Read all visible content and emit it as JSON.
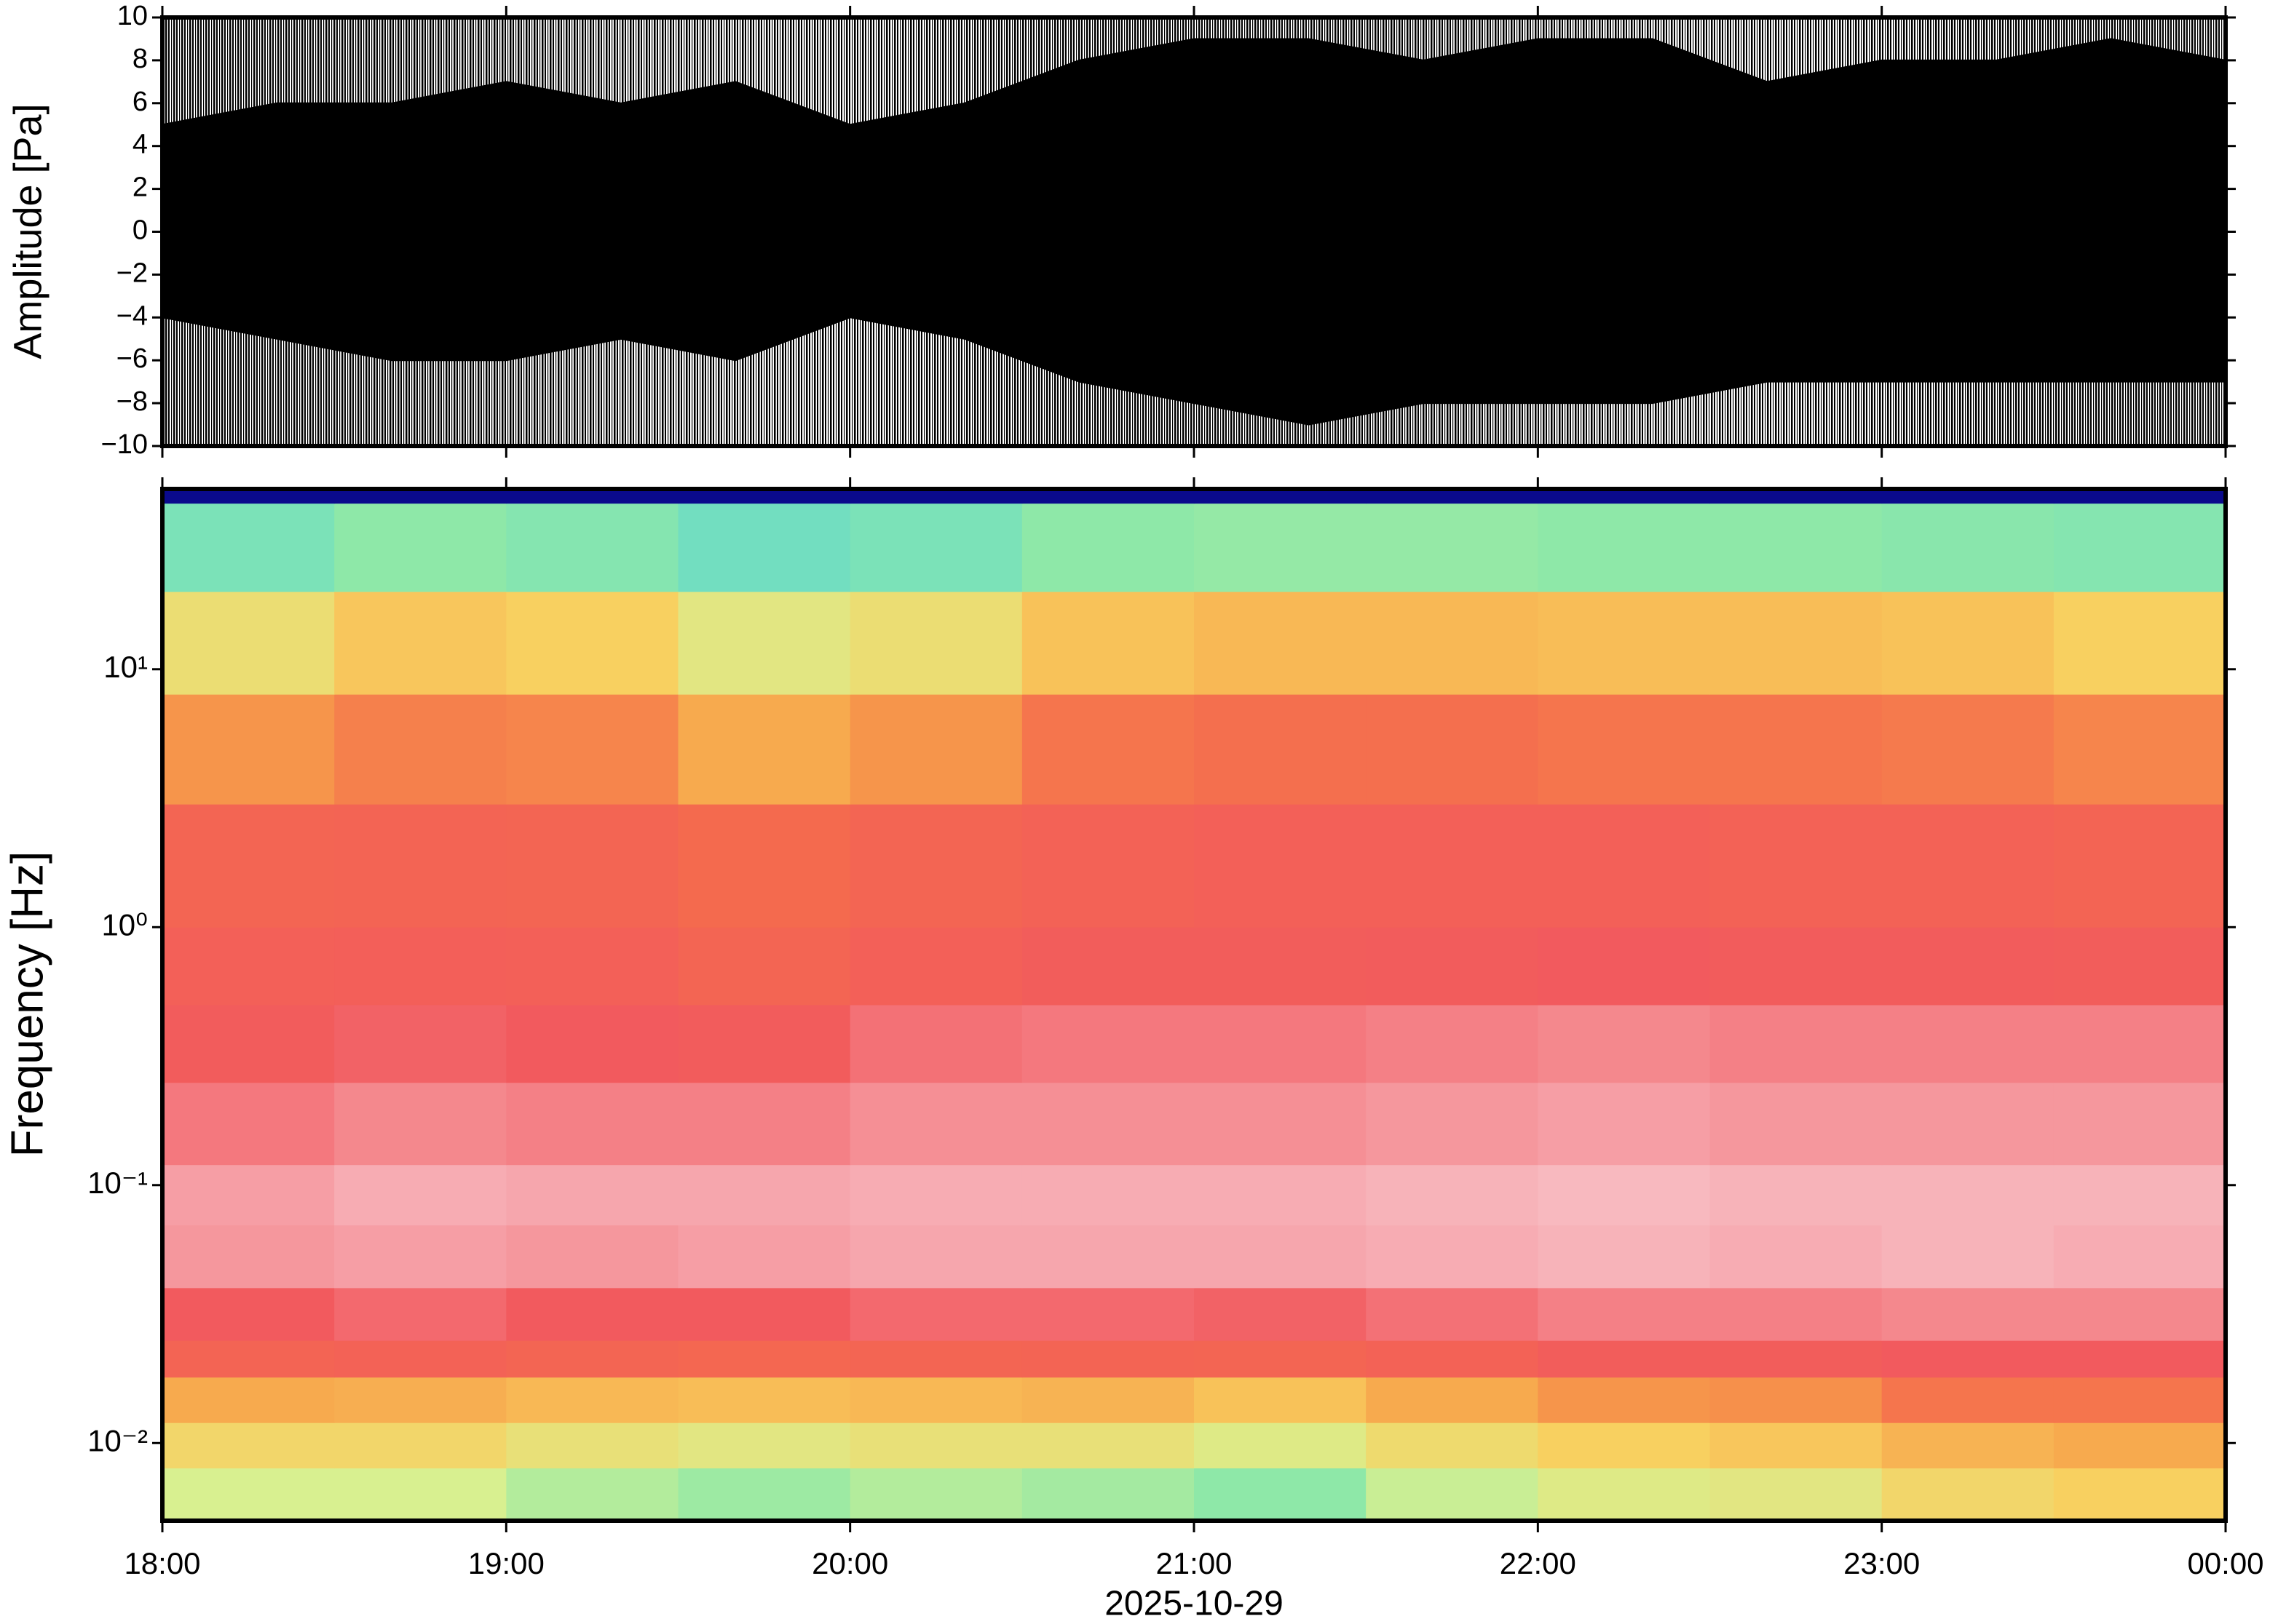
{
  "chart_data": [
    {
      "type": "area",
      "ylabel": "Amplitude [Pa]",
      "color": "#000000",
      "x": [
        "2025-10-29T18:00",
        "2025-10-29T18:20",
        "2025-10-29T18:40",
        "2025-10-29T19:00",
        "2025-10-29T19:20",
        "2025-10-29T19:40",
        "2025-10-29T20:00",
        "2025-10-29T20:20",
        "2025-10-29T20:40",
        "2025-10-29T21:00",
        "2025-10-29T21:20",
        "2025-10-29T21:40",
        "2025-10-29T22:00",
        "2025-10-29T22:20",
        "2025-10-29T22:40",
        "2025-10-29T23:00",
        "2025-10-29T23:20",
        "2025-10-29T23:40",
        "2025-10-30T00:00"
      ],
      "series": [
        {
          "values": [
            5,
            6,
            6,
            7,
            6,
            7,
            5,
            6,
            8,
            9,
            9,
            8,
            9,
            9,
            7,
            8,
            8,
            9,
            8
          ]
        },
        {
          "values": [
            -4,
            -5,
            -6,
            -6,
            -5,
            -6,
            -4,
            -5,
            -7,
            -8,
            -9,
            -8,
            -8,
            -8,
            -7,
            -7,
            -7,
            -7,
            -7
          ]
        }
      ],
      "xlim": [
        "2025-10-29T18:00",
        "2025-10-30T00:00"
      ],
      "xticks": [
        "2025-10-29T18:00",
        "2025-10-29T19:00",
        "2025-10-29T20:00",
        "2025-10-29T21:00",
        "2025-10-29T22:00",
        "2025-10-29T23:00",
        "2025-10-30T00:00"
      ],
      "ylim": [
        -10,
        10
      ],
      "yticks": [
        {
          "value": -10,
          "label": "−10"
        },
        {
          "value": -8,
          "label": "−8"
        },
        {
          "value": -6,
          "label": "−6"
        },
        {
          "value": -4,
          "label": "−4"
        },
        {
          "value": -2,
          "label": "−2"
        },
        0,
        2,
        4,
        6,
        8,
        10
      ]
    },
    {
      "type": "heatmap",
      "ylabel": "Frequency [Hz]",
      "xlabel": "2025-10-29",
      "yscale": "log",
      "x_edges": [
        "2025-10-29T18:00",
        "2025-10-29T18:30",
        "2025-10-29T19:00",
        "2025-10-29T19:30",
        "2025-10-29T20:00",
        "2025-10-29T20:30",
        "2025-10-29T21:00",
        "2025-10-29T21:30",
        "2025-10-29T22:00",
        "2025-10-29T22:30",
        "2025-10-29T23:00",
        "2025-10-29T23:30",
        "2025-10-30T00:00"
      ],
      "y_edges": [
        0.005,
        0.008,
        0.012,
        0.018,
        0.025,
        0.04,
        0.07,
        0.12,
        0.25,
        0.5,
        1,
        3,
        8,
        20,
        44,
        50
      ],
      "values": [
        [
          4,
          4,
          3.5,
          3.2,
          3.5,
          3.3,
          3,
          3.8,
          4.2,
          4.3,
          4.8,
          5
        ],
        [
          4.8,
          4.8,
          4.5,
          4.3,
          4.5,
          4.5,
          4.2,
          4.7,
          5,
          5.2,
          5.6,
          5.8
        ],
        [
          5.8,
          5.7,
          5.5,
          5.4,
          5.5,
          5.6,
          5.3,
          5.8,
          6.2,
          6.3,
          6.8,
          6.8
        ],
        [
          7.4,
          7.5,
          7.3,
          7.2,
          7.3,
          7.4,
          7.3,
          7.5,
          7.8,
          7.8,
          8,
          8
        ],
        [
          8,
          8.2,
          8,
          8,
          8.2,
          8.2,
          8.1,
          8.3,
          8.5,
          8.5,
          8.6,
          8.6
        ],
        [
          8.8,
          8.9,
          8.8,
          8.9,
          9,
          9,
          9,
          9.1,
          9.2,
          9.1,
          9.2,
          9.1
        ],
        [
          8.9,
          9.1,
          9,
          9,
          9.1,
          9.1,
          9.1,
          9.2,
          9.3,
          9.2,
          9.2,
          9.2
        ],
        [
          8.4,
          8.6,
          8.5,
          8.5,
          8.7,
          8.7,
          8.7,
          8.8,
          8.9,
          8.8,
          8.8,
          8.8
        ],
        [
          7.9,
          8.1,
          8,
          7.9,
          8.3,
          8.4,
          8.4,
          8.5,
          8.6,
          8.5,
          8.5,
          8.5
        ],
        [
          7.6,
          7.7,
          7.6,
          7.3,
          7.6,
          7.8,
          7.8,
          7.9,
          8,
          7.9,
          7.9,
          7.8
        ],
        [
          7.3,
          7.4,
          7.3,
          7,
          7.3,
          7.5,
          7.6,
          7.6,
          7.6,
          7.5,
          7.5,
          7.4
        ],
        [
          6.2,
          6.6,
          6.5,
          5.8,
          6.2,
          6.8,
          6.9,
          6.9,
          6.8,
          6.8,
          6.7,
          6.5
        ],
        [
          4.6,
          5.2,
          5,
          4.3,
          4.6,
          5.3,
          5.5,
          5.5,
          5.4,
          5.4,
          5.3,
          5
        ],
        [
          2.6,
          3,
          2.8,
          2.4,
          2.6,
          3,
          3.1,
          3.1,
          3,
          3,
          2.9,
          2.8
        ],
        [
          0,
          0,
          0,
          0,
          0,
          0,
          0,
          0,
          0,
          0,
          0,
          0
        ]
      ],
      "zlim": [
        0,
        10
      ],
      "colorscale": [
        "#0a0a8c",
        "#2060e0",
        "#5fd8d0",
        "#8ee8a8",
        "#d8f090",
        "#f8d060",
        "#f7a04a",
        "#f46a4e",
        "#f25a5e",
        "#f6a6ad",
        "#fde6e8"
      ],
      "xlim": [
        "2025-10-29T18:00",
        "2025-10-30T00:00"
      ],
      "xticks": [
        {
          "value": "2025-10-29T18:00",
          "label": "18:00"
        },
        {
          "value": "2025-10-29T19:00",
          "label": "19:00"
        },
        {
          "value": "2025-10-29T20:00",
          "label": "20:00"
        },
        {
          "value": "2025-10-29T21:00",
          "label": "21:00"
        },
        {
          "value": "2025-10-29T22:00",
          "label": "22:00"
        },
        {
          "value": "2025-10-29T23:00",
          "label": "23:00"
        },
        {
          "value": "2025-10-30T00:00",
          "label": "00:00"
        }
      ],
      "ylim": [
        0.005,
        50
      ],
      "yticks": [
        {
          "value": 0.01,
          "label": "10⁻²"
        },
        {
          "value": 0.1,
          "label": "10⁻¹"
        },
        {
          "value": 1,
          "label": "10⁰"
        },
        {
          "value": 10,
          "label": "10¹"
        }
      ]
    }
  ]
}
